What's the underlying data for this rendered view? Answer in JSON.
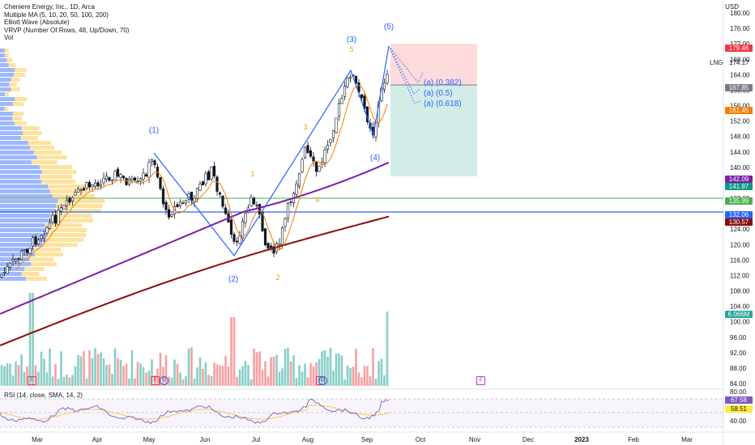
{
  "legend": {
    "title": "Cheniere Energy, Inc., 1D, Arca",
    "indicator1": "Multiple MA (5, 10, 20, 50, 100, 200)",
    "indicator2": "Elliott Wave (Absolute)",
    "indicator3": "VRVP (Number Of Rows, 48, Up/Down, 70)",
    "indicator4": "Vol"
  },
  "rsi": {
    "label": "RSI (14, close, SMA, 14, 2)",
    "value1": "67.58",
    "value2": "58.51"
  },
  "axis": {
    "currency": "USD",
    "price_ticks": [
      "180.00",
      "176.00",
      "172.00",
      "168.00",
      "164.00",
      "160.00",
      "156.00",
      "152.00",
      "148.00",
      "144.00",
      "140.00",
      "136.00",
      "132.00",
      "128.00",
      "124.00",
      "120.00",
      "116.00",
      "112.00",
      "108.00",
      "104.00",
      "100.00",
      "96.00",
      "92.00",
      "88.00",
      "84.00"
    ],
    "rsi_ticks": [
      "80.00",
      "40.00"
    ],
    "months": [
      "Mar",
      "Apr",
      "May",
      "Jun",
      "Jul",
      "Aug",
      "Sep",
      "Oct",
      "Nov",
      "Dec",
      "2023",
      "Feb",
      "Mar"
    ]
  },
  "symbol": {
    "ticker": "LNG",
    "price": "174.17"
  },
  "price_tags": [
    {
      "value": "179.46",
      "color": "#f23645"
    },
    {
      "value": "167.85",
      "color": "#787b86"
    },
    {
      "value": "161.45",
      "color": "#f57c00"
    },
    {
      "value": "142.09",
      "color": "#7b1fa2"
    },
    {
      "value": "141.97",
      "color": "#089981"
    },
    {
      "value": "135.99",
      "color": "#4caf50"
    },
    {
      "value": "132.06",
      "color": "#2962ff"
    },
    {
      "value": "130.57",
      "color": "#880e0e"
    },
    {
      "value": "6.066M",
      "color": "#26a69a"
    }
  ],
  "waves": {
    "w1": "(1)",
    "w2": "(2)",
    "w3": "(3)",
    "w4": "(4)",
    "w5": "(5)",
    "s1": "1",
    "s2": "2",
    "s3": "3",
    "s4": "4",
    "s5": "5"
  },
  "targets": {
    "t1": "(a) (0.382)",
    "t2": "(a) (0.5)",
    "t3": "(a) (0.618)"
  },
  "events": {
    "e": "E",
    "d": "D"
  }
}
